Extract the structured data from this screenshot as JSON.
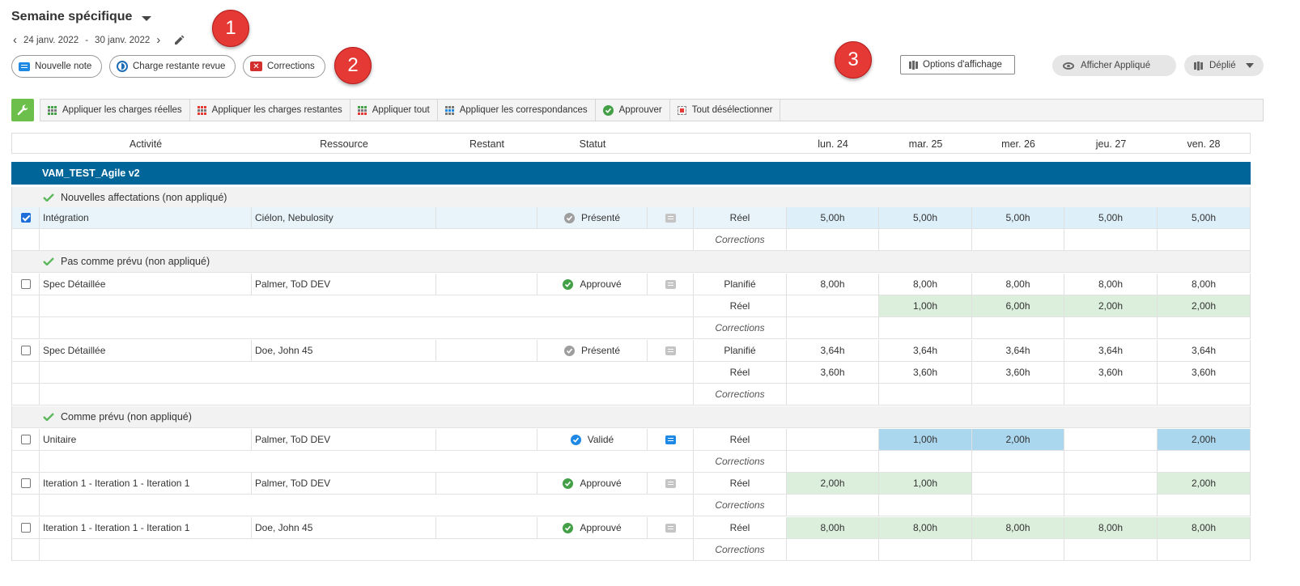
{
  "header": {
    "title": "Semaine spécifique",
    "date_start": "24 janv. 2022",
    "date_sep": "-",
    "date_end": "30 janv. 2022"
  },
  "markers": [
    "1",
    "2",
    "3"
  ],
  "buttons": {
    "new_note": "Nouvelle note",
    "charge_review": "Charge restante revue",
    "corrections": "Corrections",
    "display_options": "Options d'affichage",
    "show_applied": "Afficher Appliqué",
    "expanded": "Déplié"
  },
  "toolbar": {
    "actions": [
      {
        "label": "Appliquer les charges réelles",
        "icon": "apply-actual-grid-icon"
      },
      {
        "label": "Appliquer les charges restantes",
        "icon": "apply-remaining-grid-icon"
      },
      {
        "label": "Appliquer tout",
        "icon": "apply-all-grid-icon"
      },
      {
        "label": "Appliquer les correspondances",
        "icon": "apply-matches-grid-icon"
      },
      {
        "label": "Approuver",
        "icon": "approve-check-icon"
      },
      {
        "label": "Tout désélectionner",
        "icon": "deselect-all-icon"
      }
    ]
  },
  "table": {
    "headers": {
      "activity": "Activité",
      "resource": "Ressource",
      "remaining": "Restant",
      "status": "Statut",
      "days": [
        "lun. 24",
        "mar. 25",
        "mer. 26",
        "jeu. 27",
        "ven. 28"
      ]
    },
    "project": "VAM_TEST_Agile v2",
    "groups": [
      "Nouvelles affectations (non appliqué)",
      "Pas comme prévu (non appliqué)",
      "Comme prévu (non appliqué)"
    ],
    "rows": [
      {
        "activity": "Intégration",
        "resource": "Ciélon, Nebulosity",
        "status": "Présenté",
        "type": "Réel",
        "days": [
          "5,00h",
          "5,00h",
          "5,00h",
          "5,00h",
          "5,00h"
        ],
        "corrections": "Corrections"
      },
      {
        "activity": "Spec Détaillée",
        "resource": "Palmer, ToD DEV",
        "status": "Approuvé",
        "type": "Planifié",
        "days": [
          "8,00h",
          "8,00h",
          "8,00h",
          "8,00h",
          "8,00h"
        ],
        "type2": "Réel",
        "days2": [
          "",
          "1,00h",
          "6,00h",
          "2,00h",
          "2,00h"
        ],
        "corrections": "Corrections"
      },
      {
        "activity": "Spec Détaillée",
        "resource": "Doe, John 45",
        "status": "Présenté",
        "type": "Planifié",
        "days": [
          "3,64h",
          "3,64h",
          "3,64h",
          "3,64h",
          "3,64h"
        ],
        "type2": "Réel",
        "days2": [
          "3,60h",
          "3,60h",
          "3,60h",
          "3,60h",
          "3,60h"
        ],
        "corrections": "Corrections"
      },
      {
        "activity": "Unitaire",
        "resource": "Palmer, ToD DEV",
        "status": "Validé",
        "type": "Réel",
        "days": [
          "",
          "1,00h",
          "2,00h",
          "",
          "2,00h"
        ],
        "corrections": "Corrections"
      },
      {
        "activity": "Iteration 1 - Iteration 1 - Iteration 1",
        "resource": "Palmer, ToD DEV",
        "status": "Approuvé",
        "type": "Réel",
        "days": [
          "2,00h",
          "1,00h",
          "",
          "",
          "2,00h"
        ],
        "corrections": "Corrections"
      },
      {
        "activity": "Iteration 1 - Iteration 1 - Iteration 1",
        "resource": "Doe, John 45",
        "status": "Approuvé",
        "type": "Réel",
        "days": [
          "8,00h",
          "8,00h",
          "8,00h",
          "8,00h",
          "8,00h"
        ],
        "corrections": "Corrections"
      }
    ]
  },
  "colors": {
    "project_bar": "#006699",
    "marker_red": "#e53935",
    "approved_green": "#43a047",
    "validated_blue": "#1e88e5",
    "presented_grey": "#9e9e9e",
    "cell_green": "#dcefdc",
    "cell_blue": "#aad6ee"
  }
}
